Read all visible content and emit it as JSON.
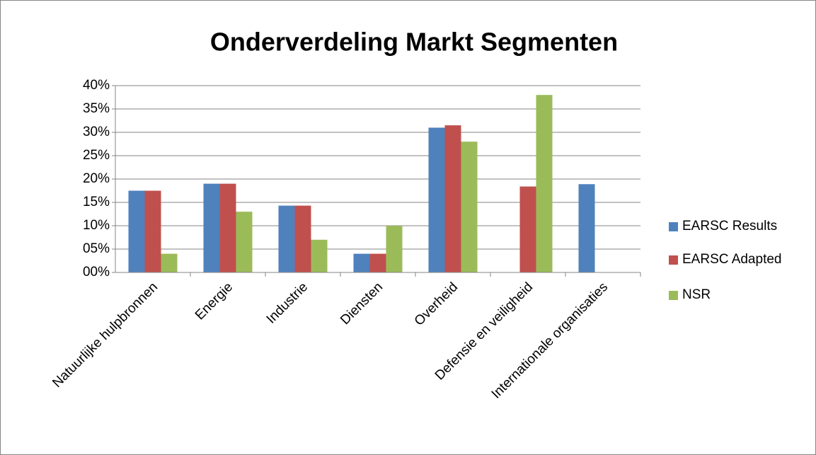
{
  "chart_data": {
    "type": "bar",
    "title": "Onderverdeling Markt Segmenten",
    "categories": [
      "Natuurlijke hulpbronnen",
      "Energie",
      "Industrie",
      "Diensten",
      "Overheid",
      "Defensie en veiligheid",
      "Internationale organisaties"
    ],
    "series": [
      {
        "name": "EARSC Results",
        "color": "#4f81bd",
        "values": [
          17.5,
          19,
          14.3,
          4,
          31,
          null,
          18.9
        ]
      },
      {
        "name": "EARSC Adapted",
        "color": "#c0504d",
        "values": [
          17.5,
          19,
          14.3,
          4,
          31.5,
          18.4,
          null
        ]
      },
      {
        "name": "NSR",
        "color": "#9bbb59",
        "values": [
          4,
          13,
          7,
          10,
          28,
          38,
          null
        ]
      }
    ],
    "ylim": [
      0,
      40
    ],
    "yticks": [
      {
        "value": 0,
        "label": "00%"
      },
      {
        "value": 5,
        "label": "05%"
      },
      {
        "value": 10,
        "label": "10%"
      },
      {
        "value": 15,
        "label": "15%"
      },
      {
        "value": 20,
        "label": "20%"
      },
      {
        "value": 25,
        "label": "25%"
      },
      {
        "value": 30,
        "label": "30%"
      },
      {
        "value": 35,
        "label": "35%"
      },
      {
        "value": 40,
        "label": "40%"
      }
    ],
    "grid": true,
    "legend": "right"
  }
}
